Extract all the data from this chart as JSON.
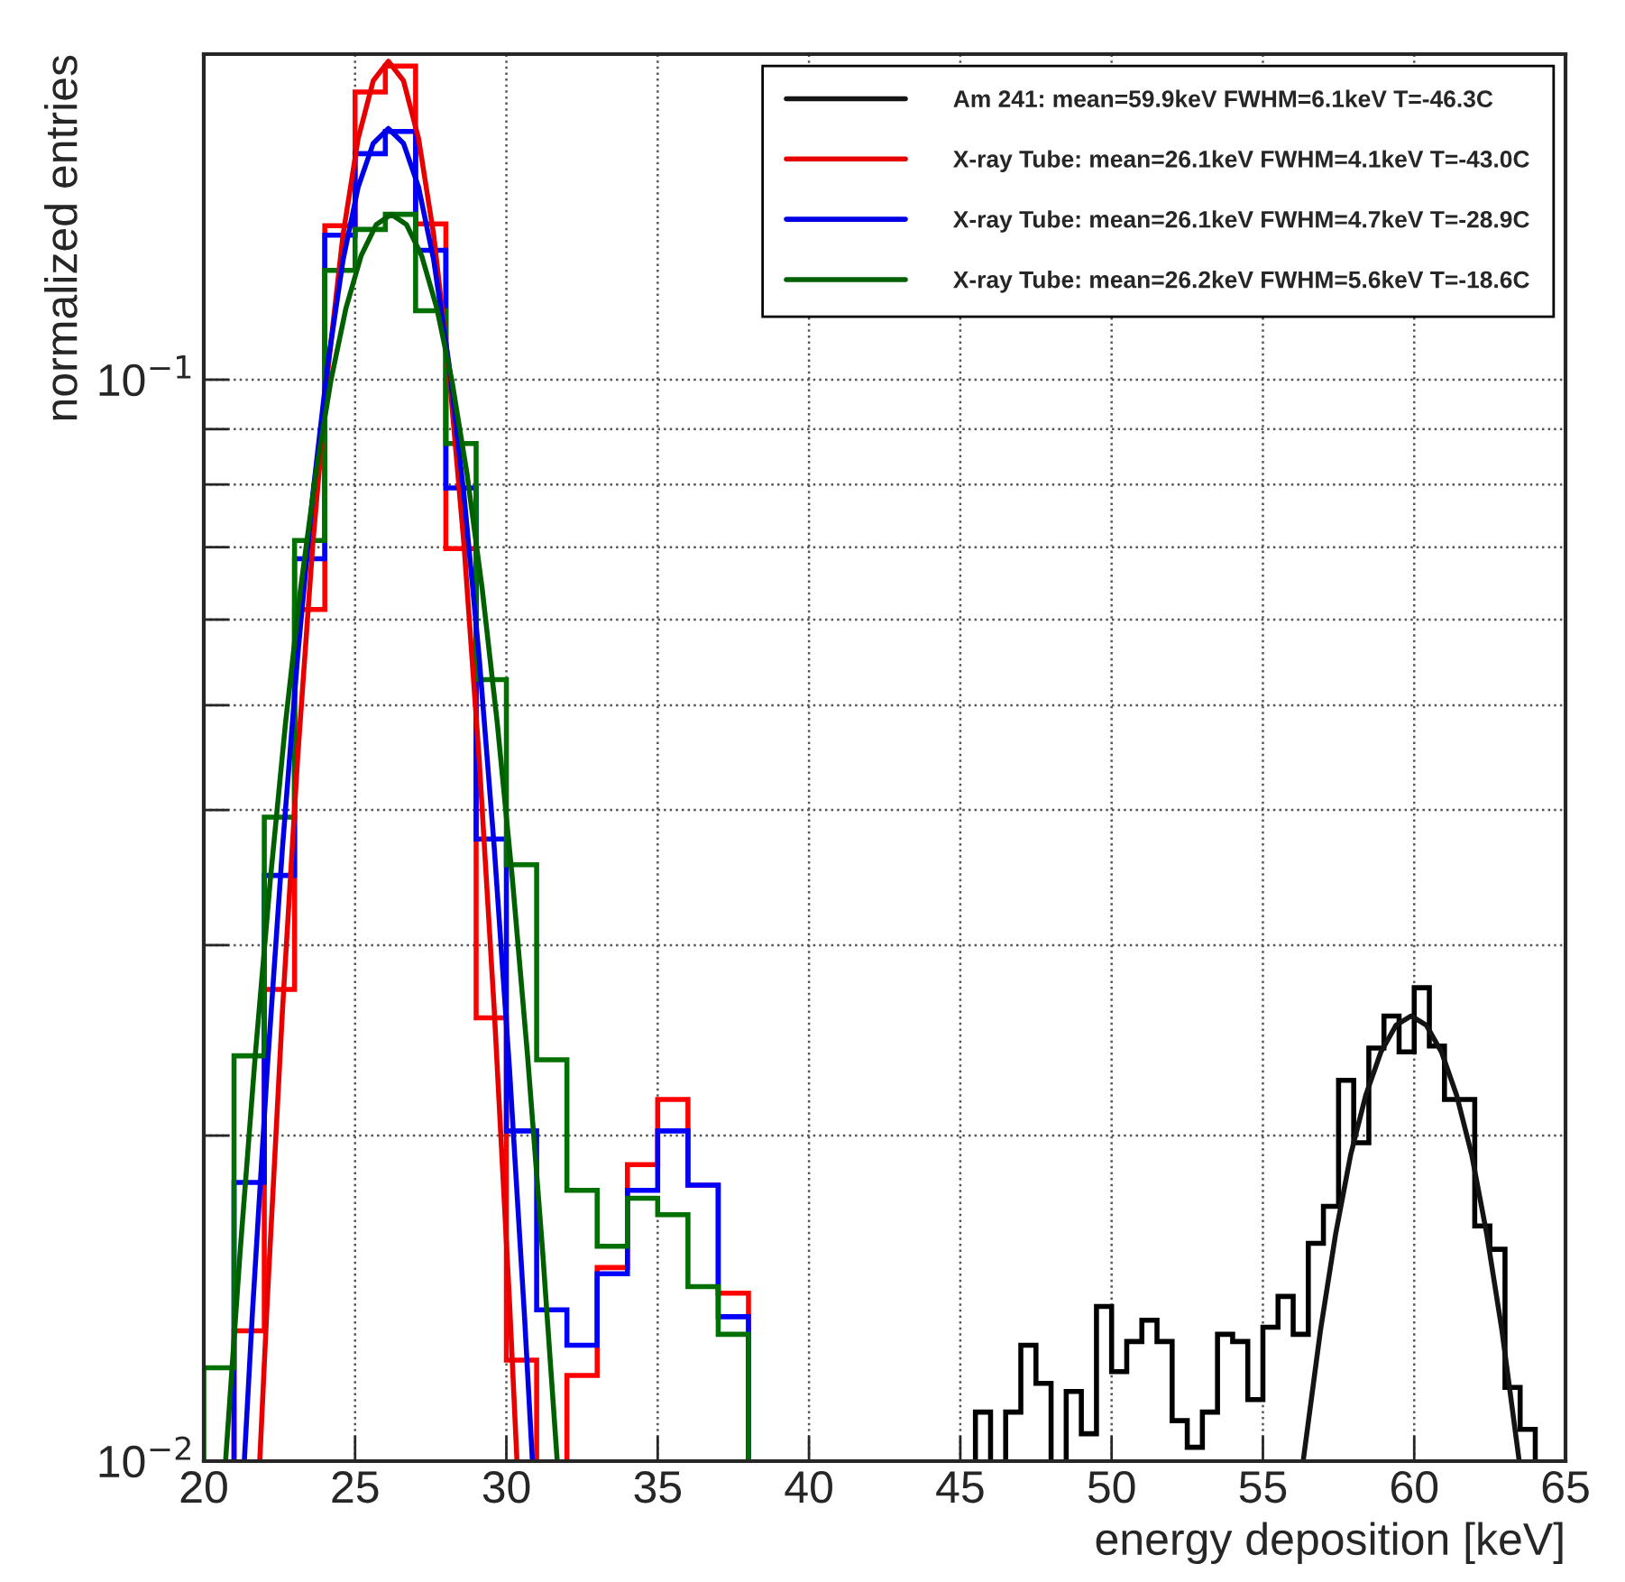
{
  "chart_data": {
    "type": "histogram",
    "xlabel": "energy deposition [keV]",
    "ylabel": "normalized entries",
    "log": "y",
    "grid": true,
    "legend": "top right",
    "xlim": [
      20,
      65
    ],
    "xticks": [
      20,
      25,
      30,
      35,
      40,
      45,
      50,
      55,
      60,
      65
    ],
    "ylim": [
      0.01,
      0.2
    ],
    "yticks": [
      {
        "value": 0.01,
        "label": "10$^{−2}$"
      },
      {
        "value": 0.02,
        "label": null
      },
      {
        "value": 0.03,
        "label": null
      },
      {
        "value": 0.04,
        "label": null
      },
      {
        "value": 0.05,
        "label": null
      },
      {
        "value": 0.06,
        "label": null
      },
      {
        "value": 0.07,
        "label": null
      },
      {
        "value": 0.08,
        "label": null
      },
      {
        "value": 0.09,
        "label": null
      },
      {
        "value": 0.1,
        "label": "10$^{−1}$"
      }
    ],
    "series": [
      {
        "color": "#000000",
        "bins": [
          45.5,
          46,
          46.5,
          47,
          47.5,
          48,
          48.5,
          49,
          49.5,
          50,
          50.5,
          51,
          51.5,
          52,
          52.5,
          53,
          53.5,
          54,
          54.5,
          55,
          55.5,
          56,
          56.5,
          57,
          57.5,
          58,
          58.5,
          59,
          59.5,
          60,
          60.5,
          61,
          61.5,
          62,
          62.5,
          63,
          63.5,
          64
        ],
        "values": [
          0.0111,
          null,
          0.0111,
          0.0128,
          0.0118,
          null,
          0.0116,
          0.0106,
          0.0139,
          0.0121,
          0.0129,
          0.0135,
          0.0129,
          0.0109,
          0.0103,
          0.0111,
          0.0131,
          0.0129,
          0.0114,
          0.0133,
          0.0142,
          0.0131,
          0.0159,
          0.0172,
          0.0225,
          0.0197,
          0.0241,
          0.0258,
          0.0239,
          0.0274,
          0.0242,
          0.0216,
          0.0216,
          0.0165,
          0.0157,
          0.0117,
          0.0107
        ]
      },
      {
        "color": "#ff0000",
        "bins": [
          21,
          22,
          23,
          24,
          25,
          26,
          27,
          28,
          29,
          30,
          31,
          32,
          33,
          34,
          35,
          36,
          37,
          38
        ],
        "values": [
          0.0132,
          0.0273,
          0.0613,
          0.1388,
          0.1845,
          0.195,
          0.1393,
          0.0698,
          0.0257,
          0.0124,
          null,
          0.012,
          0.0151,
          0.0188,
          0.0216,
          0.018,
          0.0143
        ]
      },
      {
        "color": "#0000ff",
        "bins": [
          21,
          22,
          23,
          24,
          25,
          26,
          27,
          28,
          29,
          30,
          31,
          32,
          33,
          34,
          35,
          36,
          37,
          38
        ],
        "values": [
          0.0181,
          0.0348,
          0.0683,
          0.136,
          0.1618,
          0.1696,
          0.1317,
          0.0794,
          0.0376,
          0.0202,
          0.0138,
          0.0128,
          0.0149,
          0.0178,
          0.0202,
          0.018,
          0.0136
        ]
      },
      {
        "color": "#007000",
        "bins": [
          20,
          21,
          22,
          23,
          24,
          25,
          26,
          27,
          28,
          29,
          30,
          31,
          32,
          33,
          34,
          35,
          36,
          37,
          38
        ],
        "values": [
          0.0122,
          0.0237,
          0.0394,
          0.071,
          0.1262,
          0.1377,
          0.1422,
          0.1158,
          0.0873,
          0.0528,
          0.0356,
          0.0235,
          0.0178,
          0.0158,
          0.0175,
          0.0169,
          0.0145,
          0.0131
        ]
      },
      {
        "type": "line",
        "name": "Am 241: mean=59.9keV FWHM=6.1keV T=-46.3C",
        "color": "#141414",
        "x": [
          56.33,
          56.9,
          57.4,
          57.9,
          58.4,
          58.9,
          59.4,
          59.9,
          60.4,
          60.9,
          61.4,
          61.9,
          62.4,
          62.9,
          63.47
        ],
        "values": [
          0.01,
          0.0132,
          0.0162,
          0.0192,
          0.0218,
          0.0239,
          0.0253,
          0.0258,
          0.0253,
          0.0239,
          0.0218,
          0.0192,
          0.0162,
          0.0132,
          0.01
        ]
      },
      {
        "type": "line",
        "name": "X-ray Tube: mean=26.1keV FWHM=4.1keV T=-43.0C",
        "color": "#e60000",
        "x": [
          21.85,
          22.1,
          22.6,
          23.1,
          23.6,
          24.1,
          24.6,
          25.1,
          25.6,
          26.1,
          26.6,
          27.1,
          27.6,
          28.1,
          28.6,
          29.1,
          29.6,
          30.1,
          30.35
        ],
        "values": [
          0.01,
          0.0141,
          0.0261,
          0.0446,
          0.0703,
          0.102,
          0.136,
          0.167,
          0.189,
          0.197,
          0.189,
          0.167,
          0.136,
          0.102,
          0.0703,
          0.0446,
          0.0261,
          0.0141,
          0.01
        ]
      },
      {
        "type": "line",
        "name": "X-ray Tube: mean=26.1keV FWHM=4.7keV T=-28.9C",
        "color": "#0000e6",
        "x": [
          21.34,
          21.6,
          22.1,
          22.6,
          23.1,
          23.6,
          24.1,
          24.6,
          25.1,
          25.6,
          26.1,
          26.6,
          27.1,
          27.6,
          28.1,
          28.6,
          29.1,
          29.6,
          30.1,
          30.6,
          30.86
        ],
        "values": [
          0.01,
          0.0136,
          0.0231,
          0.0369,
          0.0554,
          0.0782,
          0.1035,
          0.1289,
          0.1506,
          0.1654,
          0.1707,
          0.1654,
          0.1506,
          0.1289,
          0.1035,
          0.0782,
          0.0554,
          0.0369,
          0.0231,
          0.0136,
          0.01
        ]
      },
      {
        "type": "line",
        "name": "X-ray Tube: mean=26.2keV FWHM=5.6keV T=-18.6C",
        "color": "#006000",
        "x": [
          20.72,
          21.2,
          21.7,
          22.2,
          22.7,
          23.2,
          23.7,
          24.2,
          24.7,
          25.2,
          25.7,
          26.2,
          26.7,
          27.2,
          27.7,
          28.2,
          28.7,
          29.2,
          29.7,
          30.2,
          30.7,
          31.2,
          31.68
        ],
        "values": [
          0.01,
          0.0156,
          0.0237,
          0.0345,
          0.0481,
          0.0641,
          0.0818,
          0.0998,
          0.1165,
          0.1302,
          0.1391,
          0.1422,
          0.1391,
          0.1302,
          0.1165,
          0.0998,
          0.0818,
          0.0641,
          0.0481,
          0.0345,
          0.0237,
          0.0156,
          0.01
        ]
      }
    ]
  }
}
